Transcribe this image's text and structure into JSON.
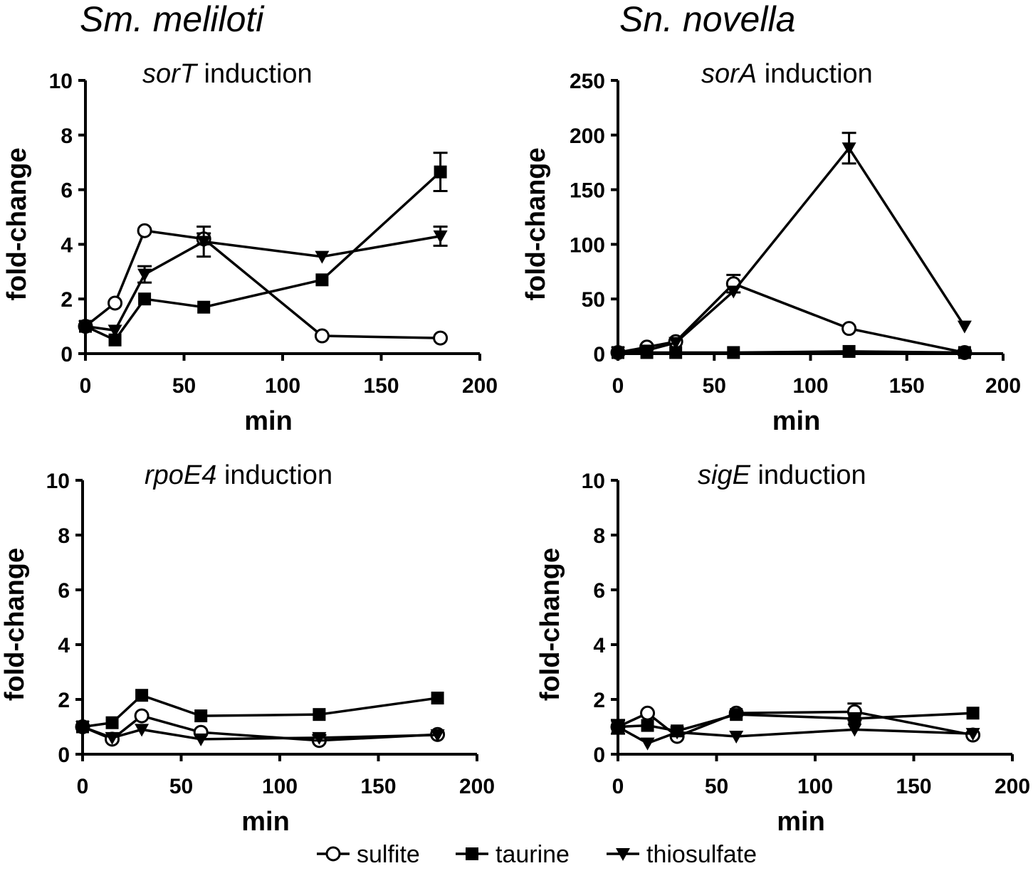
{
  "column_titles": [
    "Sm. melilot​i",
    "Sn. novella"
  ],
  "legend": [
    {
      "name": "sulfite",
      "marker": "open-circle"
    },
    {
      "name": "taurine",
      "marker": "filled-square"
    },
    {
      "name": "thiosulfate",
      "marker": "filled-triangle-down"
    }
  ],
  "chart_data": [
    {
      "type": "line",
      "title_italic": "sorT",
      "title_rest": " induction",
      "xlabel": "min",
      "ylabel": "fold-change",
      "xlim": [
        0,
        200
      ],
      "ylim": [
        0,
        10
      ],
      "xticks": [
        0,
        50,
        100,
        150,
        200
      ],
      "yticks": [
        0,
        2,
        4,
        6,
        8,
        10
      ],
      "x": [
        0,
        15,
        30,
        60,
        120,
        180
      ],
      "series": [
        {
          "name": "sulfite",
          "values": [
            1.0,
            1.85,
            4.5,
            4.2,
            0.65,
            0.57
          ],
          "errors": [
            0,
            0,
            0,
            0.2,
            0,
            0
          ]
        },
        {
          "name": "taurine",
          "values": [
            1.0,
            0.5,
            2.0,
            1.7,
            2.7,
            6.65
          ],
          "errors": [
            0,
            0,
            0,
            0,
            0,
            0.7
          ]
        },
        {
          "name": "thiosulfate",
          "values": [
            1.0,
            0.85,
            2.9,
            4.1,
            3.55,
            4.3
          ],
          "errors": [
            0,
            0,
            0.3,
            0.55,
            0,
            0.35
          ]
        }
      ]
    },
    {
      "type": "line",
      "title_italic": "sorA",
      "title_rest": " induction",
      "xlabel": "min",
      "ylabel": "fold-change",
      "xlim": [
        0,
        200
      ],
      "ylim": [
        0,
        250
      ],
      "xticks": [
        0,
        50,
        100,
        150,
        200
      ],
      "yticks": [
        0,
        50,
        100,
        150,
        200,
        250
      ],
      "x": [
        0,
        15,
        30,
        60,
        120,
        180
      ],
      "series": [
        {
          "name": "sulfite",
          "values": [
            1,
            6,
            11,
            64,
            23,
            1
          ],
          "errors": [
            0,
            0,
            0,
            8,
            0,
            0
          ]
        },
        {
          "name": "taurine",
          "values": [
            1,
            1,
            1,
            1,
            2,
            1
          ],
          "errors": [
            0,
            0,
            0,
            0,
            0,
            0
          ]
        },
        {
          "name": "thiosulfate",
          "values": [
            1,
            3,
            10,
            57,
            188,
            25
          ],
          "errors": [
            0,
            0,
            0,
            0,
            14,
            0
          ]
        }
      ]
    },
    {
      "type": "line",
      "title_italic": "rpoE4",
      "title_rest": " induction",
      "xlabel": "min",
      "ylabel": "fold-change",
      "xlim": [
        0,
        200
      ],
      "ylim": [
        0,
        10
      ],
      "xticks": [
        0,
        50,
        100,
        150,
        200
      ],
      "yticks": [
        0,
        2,
        4,
        6,
        8,
        10
      ],
      "x": [
        0,
        15,
        30,
        60,
        120,
        180
      ],
      "series": [
        {
          "name": "sulfite",
          "values": [
            1.0,
            0.55,
            1.4,
            0.8,
            0.5,
            0.72
          ],
          "errors": [
            0,
            0,
            0,
            0,
            0,
            0
          ]
        },
        {
          "name": "taurine",
          "values": [
            1.0,
            1.15,
            2.15,
            1.4,
            1.45,
            2.05
          ],
          "errors": [
            0,
            0,
            0,
            0,
            0,
            0
          ]
        },
        {
          "name": "thiosulfate",
          "values": [
            1.0,
            0.6,
            0.9,
            0.55,
            0.6,
            0.7
          ],
          "errors": [
            0,
            0,
            0,
            0,
            0.1,
            0
          ]
        }
      ]
    },
    {
      "type": "line",
      "title_italic": "sigE",
      "title_rest": " induction",
      "xlabel": "min",
      "ylabel": "fold-change",
      "xlim": [
        0,
        200
      ],
      "ylim": [
        0,
        10
      ],
      "xticks": [
        0,
        50,
        100,
        150,
        200
      ],
      "yticks": [
        0,
        2,
        4,
        6,
        8,
        10
      ],
      "x": [
        0,
        15,
        30,
        60,
        120,
        180
      ],
      "series": [
        {
          "name": "sulfite",
          "values": [
            1.0,
            1.5,
            0.65,
            1.5,
            1.55,
            0.7
          ],
          "errors": [
            0,
            0,
            0,
            0,
            0.3,
            0
          ]
        },
        {
          "name": "taurine",
          "values": [
            1.0,
            1.05,
            0.85,
            1.45,
            1.3,
            1.5
          ],
          "errors": [
            0.25,
            0,
            0,
            0,
            0,
            0
          ]
        },
        {
          "name": "thiosulfate",
          "values": [
            1.0,
            0.4,
            0.8,
            0.65,
            0.9,
            0.75
          ],
          "errors": [
            0,
            0,
            0,
            0,
            0,
            0
          ]
        }
      ]
    }
  ]
}
